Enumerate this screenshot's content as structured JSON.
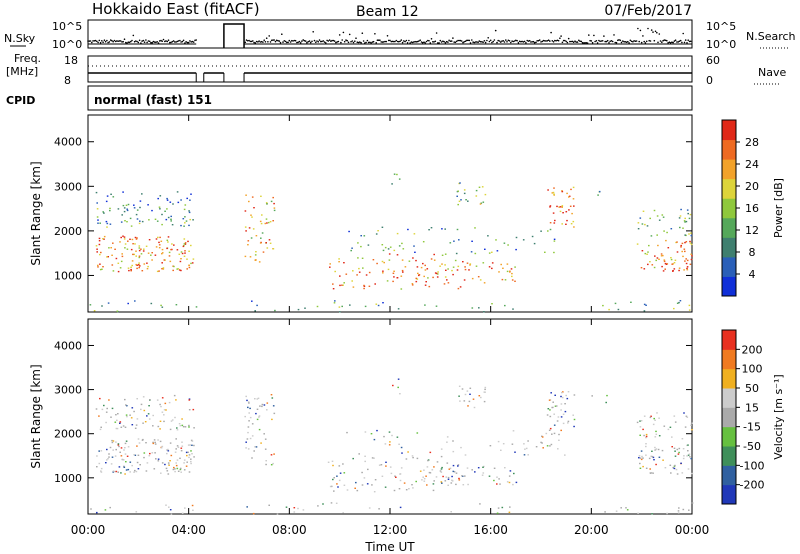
{
  "header": {
    "site": "Hokkaido East (fitACF)",
    "beam": "Beam 12",
    "date": "07/Feb/2017"
  },
  "left_labels": {
    "nsky": "N.Sky",
    "nsky_ticks": [
      "10^5",
      "10^0"
    ],
    "freq_top": "Freq.",
    "freq_unit": "[MHz]",
    "freq_ticks": [
      "18",
      "8"
    ],
    "cpid": "CPID",
    "cpid_value": "normal (fast) 151"
  },
  "right_labels": {
    "nsky_ticks": [
      "10^5",
      "10^0"
    ],
    "nsearch": "N.Search",
    "nave_ticks": [
      "60",
      "0"
    ],
    "nave": "Nave"
  },
  "colors": {
    "power_scale": [
      "#1030d8",
      "#2a5fb8",
      "#3f7f6f",
      "#55a85a",
      "#8fc83c",
      "#ddd43a",
      "#f2a22a",
      "#ee6a22",
      "#e02818"
    ],
    "velocity_scale": [
      "#2038b8",
      "#3060a0",
      "#3f8f5a",
      "#66c040",
      "#aaaaaa",
      "#cccccc",
      "#f0b020",
      "#f07a20",
      "#e83020"
    ]
  },
  "chart_data": [
    {
      "type": "heatmap",
      "name": "power",
      "ylabel": "Slant Range [km]",
      "y_ticks": [
        1000,
        2000,
        3000,
        4000
      ],
      "ylim": [
        180,
        4600
      ],
      "x_range_hours": [
        0,
        24
      ],
      "colorbar": {
        "label": "Power [dB]",
        "ticks": [
          4,
          8,
          12,
          16,
          20,
          24,
          28
        ],
        "range": [
          0,
          32
        ]
      },
      "data_gap_hours": [
        [
          4.3,
          5.4
        ],
        [
          5.4,
          6.2
        ]
      ]
    },
    {
      "type": "heatmap",
      "name": "velocity",
      "ylabel": "Slant Range [km]",
      "y_ticks": [
        1000,
        2000,
        3000,
        4000
      ],
      "ylim": [
        180,
        4600
      ],
      "x_range_hours": [
        0,
        24
      ],
      "colorbar": {
        "label": "Velocity [m s⁻¹]",
        "ticks": [
          200,
          100,
          50,
          15,
          -15,
          -50,
          -100,
          -200
        ]
      },
      "data_gap_hours": [
        [
          4.3,
          5.4
        ],
        [
          5.4,
          6.2
        ]
      ]
    }
  ],
  "x_axis": {
    "label": "Time UT",
    "ticks": [
      "00:00",
      "04:00",
      "08:00",
      "12:00",
      "16:00",
      "20:00",
      "00:00"
    ]
  }
}
